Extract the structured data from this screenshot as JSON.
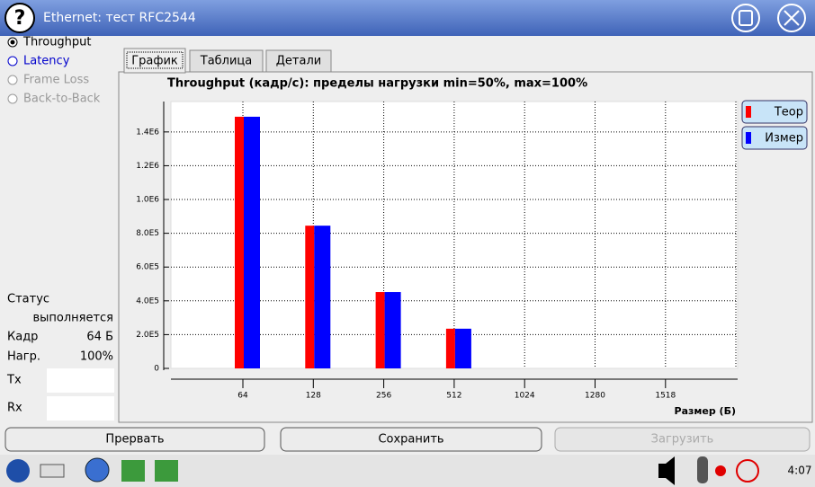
{
  "window": {
    "title": "Ethernet: тест RFC2544"
  },
  "modes": [
    "Throughput",
    "Latency",
    "Frame Loss",
    "Back-to-Back"
  ],
  "tabs": [
    "График",
    "Таблица",
    "Детали"
  ],
  "status": {
    "label": "Статус",
    "state": "выполняется",
    "frame_label": "Кадр",
    "frame_value": "64 Б",
    "load_label": "Нагр.",
    "load_value": "100%",
    "tx_label": "Tx",
    "rx_label": "Rx"
  },
  "buttons": [
    "Прервать",
    "Сохранить",
    "Загрузить"
  ],
  "taskbar": {
    "time": "4:07"
  },
  "chart_data": {
    "type": "bar",
    "title": "Throughput (кадр/с): пределы нагрузки min=50%, max=100%",
    "x_label": "Размер (Б)",
    "categories": [
      "64",
      "128",
      "256",
      "512",
      "1024",
      "1280",
      "1518"
    ],
    "series": [
      {
        "name": "Теор",
        "color": "#ff0000",
        "values": [
          1490000,
          845000,
          452000,
          235000,
          null,
          null,
          null
        ]
      },
      {
        "name": "Измер",
        "color": "#0000ff",
        "values": [
          1490000,
          845000,
          452000,
          235000,
          null,
          null,
          null
        ]
      }
    ],
    "ylim": [
      0,
      1580000
    ],
    "yticks": [
      0,
      {
        "value": 200000,
        "label": "2.0E5"
      },
      {
        "value": 400000,
        "label": "4.0E5"
      },
      {
        "value": 600000,
        "label": "6.0E5"
      },
      {
        "value": 800000,
        "label": "8.0E5"
      },
      {
        "value": 1000000,
        "label": "1.0E6"
      },
      {
        "value": 1200000,
        "label": "1.2E6"
      },
      {
        "value": 1400000,
        "label": "1.4E6"
      }
    ],
    "grid": true,
    "legend": "right"
  }
}
